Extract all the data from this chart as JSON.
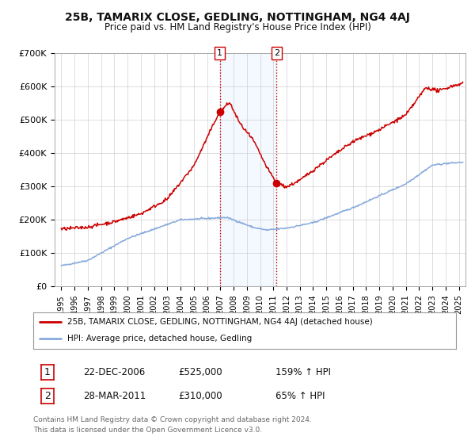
{
  "title": "25B, TAMARIX CLOSE, GEDLING, NOTTINGHAM, NG4 4AJ",
  "subtitle": "Price paid vs. HM Land Registry's House Price Index (HPI)",
  "ylim": [
    0,
    700000
  ],
  "yticks": [
    0,
    100000,
    200000,
    300000,
    400000,
    500000,
    600000,
    700000
  ],
  "ytick_labels": [
    "£0",
    "£100K",
    "£200K",
    "£300K",
    "£400K",
    "£500K",
    "£600K",
    "£700K"
  ],
  "background_color": "#ffffff",
  "grid_color": "#d0d0d0",
  "sale1_date": 2006.97,
  "sale1_price": 525000,
  "sale2_date": 2011.24,
  "sale2_price": 310000,
  "hpi_color": "#88aadd",
  "price_color": "#cc0000",
  "shade_color": "#ddeeff",
  "legend_label1": "25B, TAMARIX CLOSE, GEDLING, NOTTINGHAM, NG4 4AJ (detached house)",
  "legend_label2": "HPI: Average price, detached house, Gedling",
  "annotation1_date": "22-DEC-2006",
  "annotation1_price": "£525,000",
  "annotation1_pct": "159% ↑ HPI",
  "annotation2_date": "28-MAR-2011",
  "annotation2_price": "£310,000",
  "annotation2_pct": "65% ↑ HPI",
  "footer": "Contains HM Land Registry data © Crown copyright and database right 2024.\nThis data is licensed under the Open Government Licence v3.0."
}
